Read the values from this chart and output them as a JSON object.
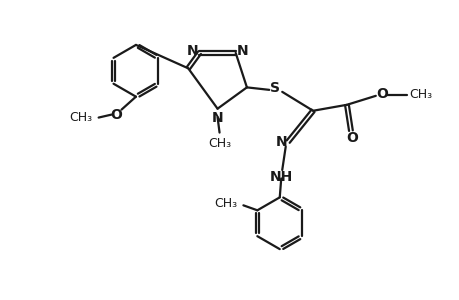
{
  "background_color": "#ffffff",
  "line_color": "#1a1a1a",
  "line_width": 1.6,
  "font_size": 9.5,
  "figsize": [
    4.6,
    3.0
  ],
  "dpi": 100,
  "xlim": [
    0,
    9.2
  ],
  "ylim": [
    0,
    6.0
  ]
}
